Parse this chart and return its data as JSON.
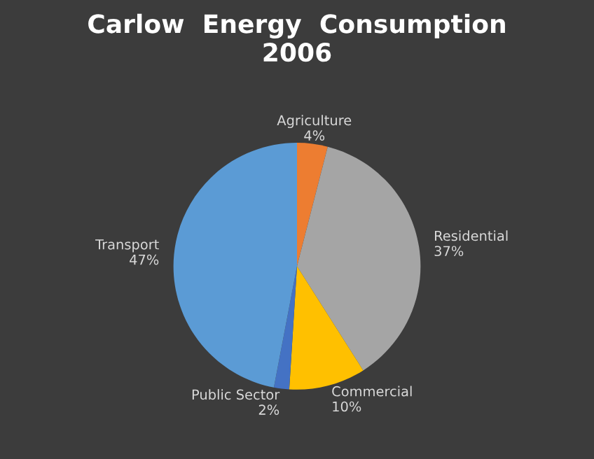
{
  "chart_data": {
    "type": "pie",
    "title": "Carlow  Energy  Consumption\n2006",
    "categories": [
      "Agriculture",
      "Residential",
      "Commercial",
      "Public Sector",
      "Transport"
    ],
    "values": [
      4,
      37,
      10,
      2,
      47
    ],
    "value_labels": [
      "4%",
      "37%",
      "10%",
      "2%",
      "47%"
    ],
    "colors": [
      "#ed7d31",
      "#a5a5a5",
      "#ffc000",
      "#4472c4",
      "#5b9bd5"
    ]
  }
}
